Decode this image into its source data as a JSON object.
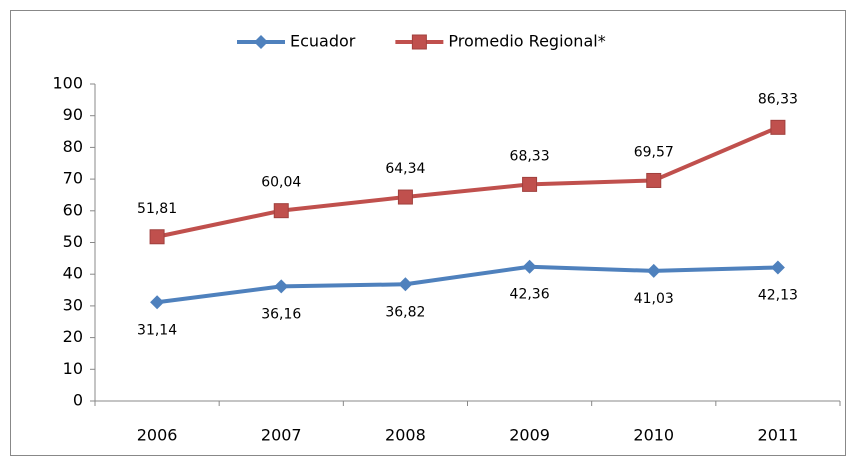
{
  "chart_data": {
    "type": "line",
    "categories": [
      "2006",
      "2007",
      "2008",
      "2009",
      "2010",
      "2011"
    ],
    "series": [
      {
        "name": "Ecuador",
        "color": "#4f81bd",
        "marker": "diamond",
        "label_position": "below",
        "values": [
          31.14,
          36.16,
          36.82,
          42.36,
          41.03,
          42.13
        ],
        "value_labels": [
          "31,14",
          "36,16",
          "36,82",
          "42,36",
          "41,03",
          "42,13"
        ]
      },
      {
        "name": "Promedio Regional*",
        "color": "#c0504d",
        "marker": "square",
        "label_position": "above",
        "values": [
          51.81,
          60.04,
          64.34,
          68.33,
          69.57,
          86.33
        ],
        "value_labels": [
          "51,81",
          "60,04",
          "64,34",
          "68,33",
          "69,57",
          "86,33"
        ]
      }
    ],
    "ylim": [
      0,
      100
    ],
    "yticks": [
      0,
      10,
      20,
      30,
      40,
      50,
      60,
      70,
      80,
      90,
      100
    ],
    "grid": false,
    "legend": "top"
  }
}
